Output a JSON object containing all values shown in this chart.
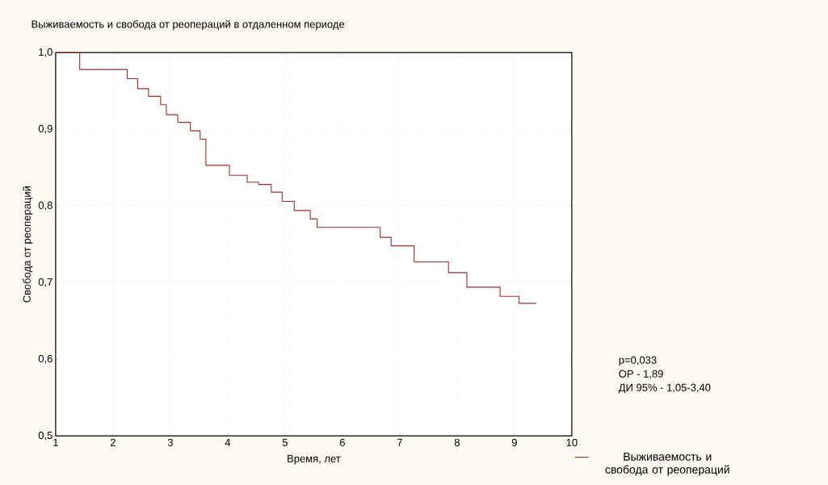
{
  "chart_data": {
    "type": "step",
    "title": "Выживаемость и свобода от реопераций в отдаленном периоде",
    "xlabel": "Время, лет",
    "ylabel": "Свобода от реопераций",
    "x": [
      1,
      1.42,
      2.25,
      2.43,
      2.62,
      2.83,
      2.93,
      3.13,
      3.35,
      3.52,
      3.62,
      4.03,
      4.34,
      4.54,
      4.76,
      4.95,
      5.16,
      5.44,
      5.56,
      6.66,
      6.85,
      7.25,
      7.85,
      8.17,
      8.75,
      9.08,
      9.38
    ],
    "series": [
      {
        "name": "Выживаемость и свобода от реопераций",
        "color": "#a52a2a",
        "values": [
          1.0,
          0.978,
          0.966,
          0.953,
          0.943,
          0.932,
          0.919,
          0.909,
          0.898,
          0.887,
          0.853,
          0.84,
          0.831,
          0.828,
          0.818,
          0.806,
          0.794,
          0.783,
          0.772,
          0.759,
          0.748,
          0.727,
          0.713,
          0.694,
          0.682,
          0.673,
          0.673
        ]
      }
    ],
    "xlim": [
      1,
      10
    ],
    "ylim": [
      0.5,
      1.0
    ],
    "xticks": [
      1,
      2,
      3,
      4,
      5,
      6,
      7,
      8,
      9,
      10
    ],
    "yticks": [
      {
        "value": 0.5,
        "label": "0,5"
      },
      {
        "value": 0.6,
        "label": "0,6"
      },
      {
        "value": 0.7,
        "label": "0,7"
      },
      {
        "value": 0.8,
        "label": "0,8"
      },
      {
        "value": 0.9,
        "label": "0,9"
      },
      {
        "value": 1.0,
        "label": "1,0"
      }
    ],
    "grid": true,
    "legend": "bottom right",
    "marker": "none",
    "annotations": [
      "p=0,033",
      "ОР - 1,89",
      "ДИ 95% - 1,05-3,40"
    ]
  }
}
